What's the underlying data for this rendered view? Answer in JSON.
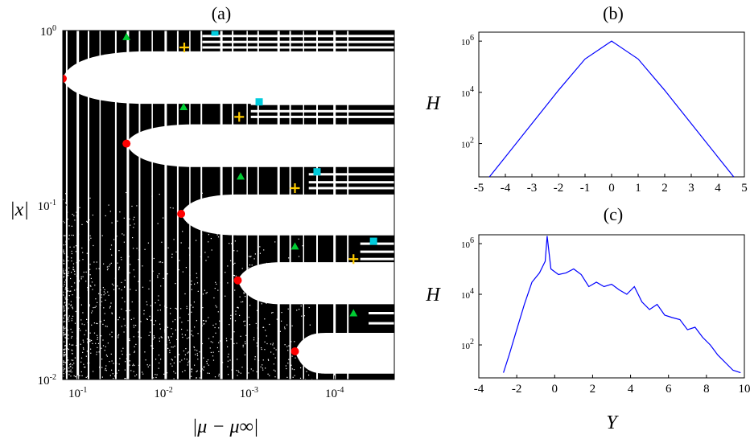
{
  "chart_data": [
    {
      "type": "scatter",
      "panel_label": "(a)",
      "ylabel": "|x|",
      "xlabel": "|μ − μ∞|",
      "xscale": "log",
      "yscale": "log",
      "xlim": [
        0.15,
        2e-05
      ],
      "ylim": [
        0.01,
        1
      ],
      "x_tick_labels": [
        {
          "value": 0.1,
          "base": "10",
          "exp": "-1"
        },
        {
          "value": 0.01,
          "base": "10",
          "exp": "-2"
        },
        {
          "value": 0.001,
          "base": "10",
          "exp": "-3"
        },
        {
          "value": 0.0001,
          "base": "10",
          "exp": "-4"
        }
      ],
      "y_tick_labels": [
        {
          "value": 1,
          "base": "10",
          "exp": "0"
        },
        {
          "value": 0.1,
          "base": "10",
          "exp": "-1"
        },
        {
          "value": 0.01,
          "base": "10",
          "exp": "-2"
        }
      ],
      "markers": {
        "red_circle": {
          "color": "#ff0000",
          "points": [
            [
              0.15,
              0.53
            ],
            [
              0.027,
              0.225
            ],
            [
              0.0062,
              0.089
            ],
            [
              0.00135,
              0.037
            ],
            [
              0.00029,
              0.0145
            ]
          ]
        },
        "green_triangle": {
          "color": "#00cc33",
          "points": [
            [
              0.027,
              0.92
            ],
            [
              0.0058,
              0.365
            ],
            [
              0.00125,
              0.146
            ],
            [
              0.00029,
              0.058
            ],
            [
              6e-05,
              0.024
            ]
          ]
        },
        "cyan_square": {
          "color": "#00ccdd",
          "points": [
            [
              0.0025,
              0.98
            ],
            [
              0.00076,
              0.39
            ],
            [
              0.00016,
              0.155
            ],
            [
              3.5e-05,
              0.062
            ]
          ]
        },
        "yellow_star": {
          "color": "#ffcc00",
          "points": [
            [
              0.0057,
              0.8
            ],
            [
              0.0013,
              0.32
            ],
            [
              0.00029,
              0.125
            ],
            [
              6e-05,
              0.049
            ]
          ]
        }
      }
    },
    {
      "type": "line",
      "panel_label": "(b)",
      "ylabel": "H",
      "xlabel": "",
      "yscale": "log",
      "xlim": [
        -5,
        5
      ],
      "ylim": [
        5,
        1000000
      ],
      "x_tick_labels": [
        "-5",
        "-4",
        "-3",
        "-2",
        "-1",
        "0",
        "1",
        "2",
        "3",
        "4",
        "5"
      ],
      "y_tick_labels": [
        {
          "value": 1000000,
          "base": "10",
          "exp": "6"
        },
        {
          "value": 10000,
          "base": "10",
          "exp": "4"
        },
        {
          "value": 100,
          "base": "10",
          "exp": "2"
        }
      ],
      "x": [
        -4.6,
        -4.0,
        -3.0,
        -2.0,
        -1.0,
        0.0,
        1.0,
        2.0,
        3.0,
        4.0,
        4.6
      ],
      "y": [
        5,
        30,
        600,
        12000,
        200000,
        1000000,
        200000,
        12000,
        600,
        30,
        5
      ],
      "color": "#0000ff"
    },
    {
      "type": "line",
      "panel_label": "(c)",
      "ylabel": "H",
      "xlabel": "Y",
      "yscale": "log",
      "xlim": [
        -4,
        10
      ],
      "ylim": [
        5,
        1000000
      ],
      "x_tick_labels": [
        "-4",
        "-2",
        "0",
        "2",
        "4",
        "6",
        "8",
        "10"
      ],
      "y_tick_labels": [
        {
          "value": 1000000,
          "base": "10",
          "exp": "6"
        },
        {
          "value": 10000,
          "base": "10",
          "exp": "4"
        },
        {
          "value": 100,
          "base": "10",
          "exp": "2"
        }
      ],
      "x": [
        -2.7,
        -2.4,
        -2.0,
        -1.6,
        -1.2,
        -0.8,
        -0.5,
        -0.4,
        -0.2,
        0.2,
        0.6,
        1.0,
        1.4,
        1.8,
        2.2,
        2.6,
        3.0,
        3.4,
        3.8,
        4.2,
        4.6,
        5.0,
        5.4,
        5.8,
        6.2,
        6.6,
        7.0,
        7.4,
        7.8,
        8.2,
        8.6,
        9.0,
        9.4,
        9.8
      ],
      "y": [
        8,
        40,
        400,
        4000,
        30000,
        70000,
        200000,
        2000000,
        100000,
        60000,
        70000,
        100000,
        60000,
        20000,
        30000,
        20000,
        25000,
        15000,
        10000,
        20000,
        5000,
        2500,
        4000,
        1500,
        1200,
        1000,
        400,
        500,
        200,
        100,
        40,
        20,
        10,
        8
      ],
      "color": "#0000ff"
    }
  ]
}
